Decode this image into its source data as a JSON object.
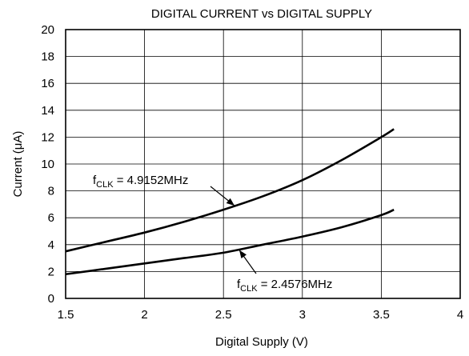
{
  "chart_data": {
    "type": "line",
    "title": "DIGITAL CURRENT vs DIGITAL SUPPLY",
    "xlabel": "Digital Supply (V)",
    "ylabel": "Current (μA)",
    "xlim": [
      1.5,
      4
    ],
    "ylim": [
      0,
      20
    ],
    "x_ticks": [
      1.5,
      2,
      2.5,
      3,
      3.5,
      4
    ],
    "x_tick_labels": [
      "1.5",
      "2",
      "2.5",
      "3",
      "3.5",
      "4"
    ],
    "y_ticks": [
      0,
      2,
      4,
      6,
      8,
      10,
      12,
      14,
      16,
      18,
      20
    ],
    "y_tick_labels": [
      "0",
      "2",
      "4",
      "6",
      "8",
      "10",
      "12",
      "14",
      "16",
      "18",
      "20"
    ],
    "grid": true,
    "legend": "none",
    "series": [
      {
        "name": "fCLK = 4.9152MHz",
        "label_main": "f",
        "label_sub": "CLK",
        "label_rest": " = 4.9152MHz",
        "x": [
          1.5,
          1.75,
          2.0,
          2.25,
          2.5,
          2.75,
          3.0,
          3.25,
          3.5,
          3.58
        ],
        "y": [
          3.5,
          4.2,
          4.9,
          5.7,
          6.6,
          7.6,
          8.8,
          10.3,
          12.0,
          12.6
        ],
        "annotation_arrow_to": [
          2.57,
          6.9
        ]
      },
      {
        "name": "fCLK = 2.4576MHz",
        "label_main": "f",
        "label_sub": "CLK",
        "label_rest": " = 2.4576MHz",
        "x": [
          1.5,
          1.75,
          2.0,
          2.25,
          2.5,
          2.75,
          3.0,
          3.25,
          3.5,
          3.58
        ],
        "y": [
          1.8,
          2.2,
          2.6,
          3.0,
          3.4,
          4.0,
          4.6,
          5.3,
          6.2,
          6.6
        ],
        "annotation_arrow_to": [
          2.6,
          3.6
        ]
      }
    ]
  }
}
